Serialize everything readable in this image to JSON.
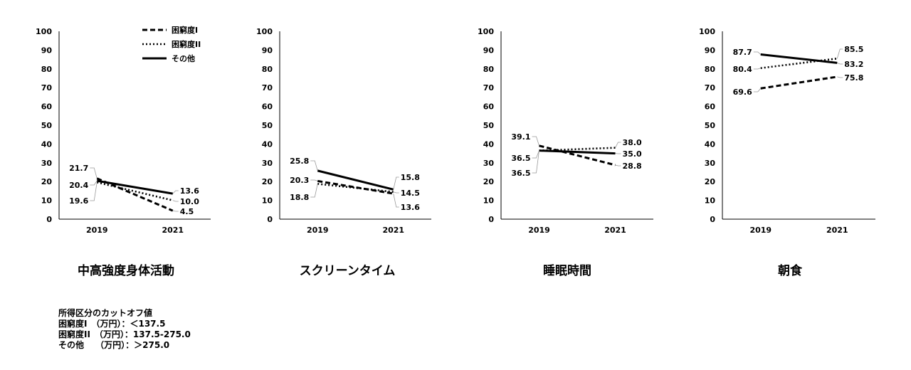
{
  "legend": [
    "困窮度I",
    "困窮度II",
    "その他"
  ],
  "chart_data": [
    {
      "type": "line",
      "title": "中高強度身体活動",
      "categories": [
        "2019",
        "2021"
      ],
      "ylim": [
        0,
        100
      ],
      "yticks": [
        "0",
        "10",
        "20",
        "30",
        "40",
        "50",
        "60",
        "70",
        "80",
        "90",
        "100"
      ],
      "series": [
        {
          "name": "困窮度I",
          "values": [
            21.7,
            4.5
          ]
        },
        {
          "name": "困窮度II",
          "values": [
            19.6,
            10.0
          ]
        },
        {
          "name": "その他",
          "values": [
            20.4,
            13.6
          ]
        }
      ],
      "labels2019": [
        "21.7",
        "19.6",
        "20.4"
      ],
      "labels2021": [
        "4.5",
        "10.0",
        "13.6"
      ]
    },
    {
      "type": "line",
      "title": "スクリーンタイム",
      "categories": [
        "2019",
        "2021"
      ],
      "ylim": [
        0,
        100
      ],
      "yticks": [
        "0",
        "10",
        "20",
        "30",
        "40",
        "50",
        "60",
        "70",
        "80",
        "90",
        "100"
      ],
      "series": [
        {
          "name": "困窮度I",
          "values": [
            20.3,
            13.6
          ]
        },
        {
          "name": "困窮度II",
          "values": [
            18.8,
            14.5
          ]
        },
        {
          "name": "その他",
          "values": [
            25.8,
            15.8
          ]
        }
      ],
      "labels2019": [
        "20.3",
        "18.8",
        "25.8"
      ],
      "labels2021": [
        "13.6",
        "14.5",
        "15.8"
      ]
    },
    {
      "type": "line",
      "title": "睡眠時間",
      "categories": [
        "2019",
        "2021"
      ],
      "ylim": [
        0,
        100
      ],
      "yticks": [
        "0",
        "10",
        "20",
        "30",
        "40",
        "50",
        "60",
        "70",
        "80",
        "90",
        "100"
      ],
      "series": [
        {
          "name": "困窮度I",
          "values": [
            39.1,
            28.8
          ]
        },
        {
          "name": "困窮度II",
          "values": [
            36.5,
            38.0
          ]
        },
        {
          "name": "その他",
          "values": [
            36.5,
            35.0
          ]
        }
      ],
      "labels2019": [
        "39.1",
        "36.5",
        "36.5"
      ],
      "labels2021": [
        "28.8",
        "38.0",
        "35.0"
      ]
    },
    {
      "type": "line",
      "title": "朝食",
      "categories": [
        "2019",
        "2021"
      ],
      "ylim": [
        0,
        100
      ],
      "yticks": [
        "0",
        "10",
        "20",
        "30",
        "40",
        "50",
        "60",
        "70",
        "80",
        "90",
        "100"
      ],
      "series": [
        {
          "name": "困窮度I",
          "values": [
            69.6,
            75.8
          ]
        },
        {
          "name": "困窮度II",
          "values": [
            80.4,
            85.5
          ]
        },
        {
          "name": "その他",
          "values": [
            87.7,
            83.2
          ]
        }
      ],
      "labels2019": [
        "69.6",
        "80.4",
        "87.7"
      ],
      "labels2021": [
        "75.8",
        "85.5",
        "83.2"
      ]
    }
  ],
  "note": {
    "title": "所得区分のカットオフ値",
    "lines": [
      "困窮度I　（万円）：＜137.5",
      "困窮度II　（万円）：137.5-275.0",
      "その他　 （万円）：＞275.0"
    ]
  }
}
